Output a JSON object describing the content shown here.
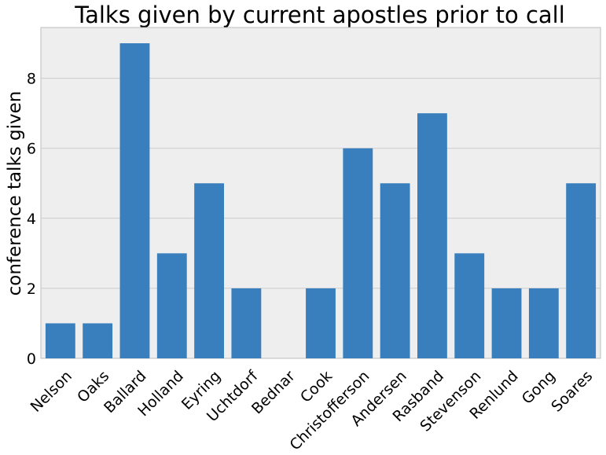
{
  "chart_data": {
    "type": "bar",
    "title": "Talks given by current apostles prior to call",
    "xlabel": "",
    "ylabel": "conference talks given",
    "categories": [
      "Nelson",
      "Oaks",
      "Ballard",
      "Holland",
      "Eyring",
      "Uchtdorf",
      "Bednar",
      "Cook",
      "Christofferson",
      "Andersen",
      "Rasband",
      "Stevenson",
      "Renlund",
      "Gong",
      "Soares"
    ],
    "values": [
      1,
      1,
      9,
      3,
      5,
      2,
      0,
      2,
      6,
      5,
      7,
      3,
      2,
      2,
      5
    ],
    "ylim": [
      0,
      9.45
    ],
    "yticks": [
      0,
      2,
      4,
      6,
      8
    ],
    "grid": true,
    "colors": {
      "bar": "#3a7fbd",
      "plot_background": "#eeeeee",
      "grid": "#cccccc"
    }
  }
}
